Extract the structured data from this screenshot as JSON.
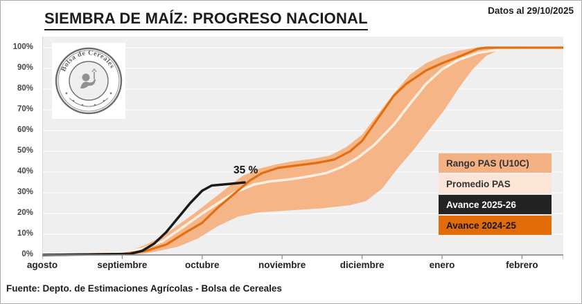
{
  "header": {
    "title": "SIEMBRA DE MAÍZ: PROGRESO NACIONAL",
    "date_note": "Datos al 29/10/2025"
  },
  "footer": {
    "source": "Fuente: Depto. de Estimaciones Agrícolas - Bolsa de Cereales"
  },
  "watermark": {
    "seal_text": "Bolsa de Cereales"
  },
  "annotation": {
    "text": "35 %",
    "month_x": 2.6,
    "pct_y": 40
  },
  "colors": {
    "plot_bg": "#efefef",
    "gridline": "#ffffff",
    "axis": "#8f8f8f",
    "band": "#f6b587",
    "promedio_line": "#fdefe2",
    "avance_2024_25_line": "#e26e0d",
    "avance_2025_26_line": "#1a1a1a"
  },
  "legend": {
    "items": [
      {
        "label": "Rango PAS (U10C)",
        "bg": "#f4b183",
        "fg": "#333333"
      },
      {
        "label": "Promedio PAS",
        "bg": "#fbe5d6",
        "fg": "#333333"
      },
      {
        "label": "Avance 2025-26",
        "bg": "#232323",
        "fg": "#ffffff"
      },
      {
        "label": "Avance 2024-25",
        "bg": "#e36c0a",
        "fg": "#141414"
      }
    ]
  },
  "chart_data": {
    "type": "area",
    "title": "SIEMBRA DE MAÍZ: PROGRESO NACIONAL",
    "x_unit": "months (0 = 1 agosto)",
    "x_axis": {
      "months": [
        "agosto",
        "septiembre",
        "octubre",
        "noviembre",
        "diciembre",
        "enero",
        "febrero"
      ],
      "x_end": 6.517
    },
    "y_axis": {
      "min": 0,
      "max": 100,
      "ticks": [
        0,
        10,
        20,
        30,
        40,
        50,
        60,
        70,
        80,
        90,
        100
      ],
      "unit": "%"
    },
    "grid": true,
    "legend_position": "right-middle",
    "series": [
      {
        "name": "Rango PAS (U10C)",
        "kind": "band",
        "upper": [
          [
            0,
            0
          ],
          [
            0.9,
            0.5
          ],
          [
            1.1,
            2
          ],
          [
            1.3,
            5
          ],
          [
            1.5,
            9
          ],
          [
            1.7,
            14.5
          ],
          [
            1.9,
            20
          ],
          [
            2.1,
            26
          ],
          [
            2.3,
            32
          ],
          [
            2.5,
            38
          ],
          [
            2.7,
            41.5
          ],
          [
            2.9,
            43.5
          ],
          [
            3.1,
            45
          ],
          [
            3.4,
            46.5
          ],
          [
            3.6,
            48
          ],
          [
            3.8,
            52
          ],
          [
            4.0,
            58
          ],
          [
            4.2,
            68
          ],
          [
            4.4,
            78
          ],
          [
            4.6,
            87
          ],
          [
            4.8,
            92.5
          ],
          [
            5.0,
            96
          ],
          [
            5.2,
            98.5
          ],
          [
            5.42,
            100
          ],
          [
            6.517,
            100
          ]
        ],
        "lower": [
          [
            0,
            0
          ],
          [
            1.15,
            0
          ],
          [
            1.4,
            1.5
          ],
          [
            1.7,
            4
          ],
          [
            1.95,
            8
          ],
          [
            2.2,
            14
          ],
          [
            2.45,
            18.5
          ],
          [
            2.7,
            20.5
          ],
          [
            3.1,
            21.5
          ],
          [
            3.5,
            22.5
          ],
          [
            3.85,
            24
          ],
          [
            4.05,
            26
          ],
          [
            4.25,
            32
          ],
          [
            4.45,
            42
          ],
          [
            4.65,
            51
          ],
          [
            4.85,
            61
          ],
          [
            5.03,
            70
          ],
          [
            5.2,
            80
          ],
          [
            5.37,
            89
          ],
          [
            5.55,
            96
          ],
          [
            5.72,
            99
          ],
          [
            5.9,
            100
          ],
          [
            6.517,
            100
          ]
        ]
      },
      {
        "name": "Promedio PAS",
        "kind": "line",
        "width": 3.5,
        "points": [
          [
            0,
            0
          ],
          [
            1.0,
            1
          ],
          [
            1.25,
            3
          ],
          [
            1.5,
            6.5
          ],
          [
            1.8,
            14.5
          ],
          [
            2.0,
            20
          ],
          [
            2.2,
            25
          ],
          [
            2.4,
            30
          ],
          [
            2.65,
            34
          ],
          [
            2.85,
            35.5
          ],
          [
            3.1,
            36.5
          ],
          [
            3.35,
            38
          ],
          [
            3.55,
            39.5
          ],
          [
            3.75,
            42.5
          ],
          [
            3.95,
            47
          ],
          [
            4.15,
            53
          ],
          [
            4.4,
            63
          ],
          [
            4.6,
            73
          ],
          [
            4.8,
            82.5
          ],
          [
            5.0,
            89.5
          ],
          [
            5.2,
            94
          ],
          [
            5.45,
            97.5
          ],
          [
            5.7,
            99
          ],
          [
            6.0,
            100
          ],
          [
            6.517,
            100
          ]
        ]
      },
      {
        "name": "Avance 2024-25",
        "kind": "line",
        "width": 3.2,
        "points": [
          [
            0,
            0
          ],
          [
            1.0,
            0.5
          ],
          [
            1.3,
            2
          ],
          [
            1.55,
            5
          ],
          [
            1.8,
            11
          ],
          [
            2.0,
            15.5
          ],
          [
            2.2,
            23
          ],
          [
            2.4,
            29.5
          ],
          [
            2.6,
            36
          ],
          [
            2.75,
            39.5
          ],
          [
            2.95,
            42
          ],
          [
            3.15,
            43
          ],
          [
            3.45,
            44.5
          ],
          [
            3.65,
            46
          ],
          [
            3.85,
            50
          ],
          [
            4.0,
            55
          ],
          [
            4.2,
            66
          ],
          [
            4.4,
            77
          ],
          [
            4.55,
            82.5
          ],
          [
            4.8,
            89
          ],
          [
            5.0,
            92.5
          ],
          [
            5.2,
            95.5
          ],
          [
            5.45,
            99.5
          ],
          [
            5.55,
            100
          ],
          [
            6.517,
            100
          ]
        ]
      },
      {
        "name": "Avance 2025-26",
        "kind": "line",
        "width": 3.5,
        "points": [
          [
            0,
            0
          ],
          [
            1.1,
            0.5
          ],
          [
            1.25,
            2
          ],
          [
            1.4,
            5.5
          ],
          [
            1.55,
            11
          ],
          [
            1.7,
            18
          ],
          [
            1.85,
            25
          ],
          [
            2.0,
            31
          ],
          [
            2.12,
            33.5
          ],
          [
            2.35,
            34.3
          ],
          [
            2.53,
            35
          ]
        ]
      }
    ]
  }
}
